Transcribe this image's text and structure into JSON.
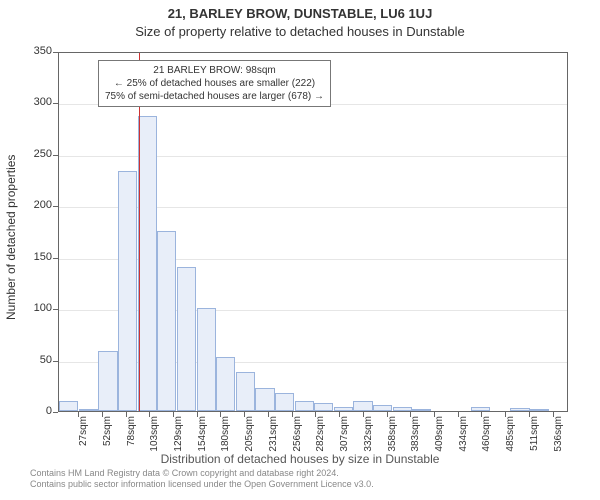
{
  "title_line1": "21, BARLEY BROW, DUNSTABLE, LU6 1UJ",
  "title_line2": "Size of property relative to detached houses in Dunstable",
  "ylabel": "Number of detached properties",
  "xlabel": "Distribution of detached houses by size in Dunstable",
  "ylim": [
    0,
    350
  ],
  "ytick_step": 50,
  "xticks": [
    "27sqm",
    "52sqm",
    "78sqm",
    "103sqm",
    "129sqm",
    "154sqm",
    "180sqm",
    "205sqm",
    "231sqm",
    "256sqm",
    "282sqm",
    "307sqm",
    "332sqm",
    "358sqm",
    "383sqm",
    "409sqm",
    "434sqm",
    "460sqm",
    "485sqm",
    "511sqm",
    "536sqm"
  ],
  "bars": [
    10,
    2,
    58,
    233,
    287,
    175,
    140,
    100,
    53,
    38,
    22,
    18,
    10,
    8,
    4,
    10,
    6,
    4,
    2,
    0,
    0,
    4,
    0,
    3,
    2,
    0
  ],
  "marker_value_sqm": 98,
  "x_min_sqm": 14,
  "x_max_sqm": 549,
  "bar_fill": "#e8eef9",
  "bar_border": "#9bb4dd",
  "marker_color": "#cc3333",
  "grid_color": "#e6e6e6",
  "axis_color": "#666666",
  "text_color": "#333333",
  "annot_line1": "21 BARLEY BROW: 98sqm",
  "annot_line2": "← 25% of detached houses are smaller (222)",
  "annot_line3": "75% of semi-detached houses are larger (678) →",
  "footer_line1": "Contains HM Land Registry data © Crown copyright and database right 2024.",
  "footer_line2": "Contains public sector information licensed under the Open Government Licence v3.0.",
  "title_fontsize": 13,
  "label_fontsize": 12,
  "tick_fontsize": 11,
  "annot_fontsize": 10,
  "footer_fontsize": 9
}
